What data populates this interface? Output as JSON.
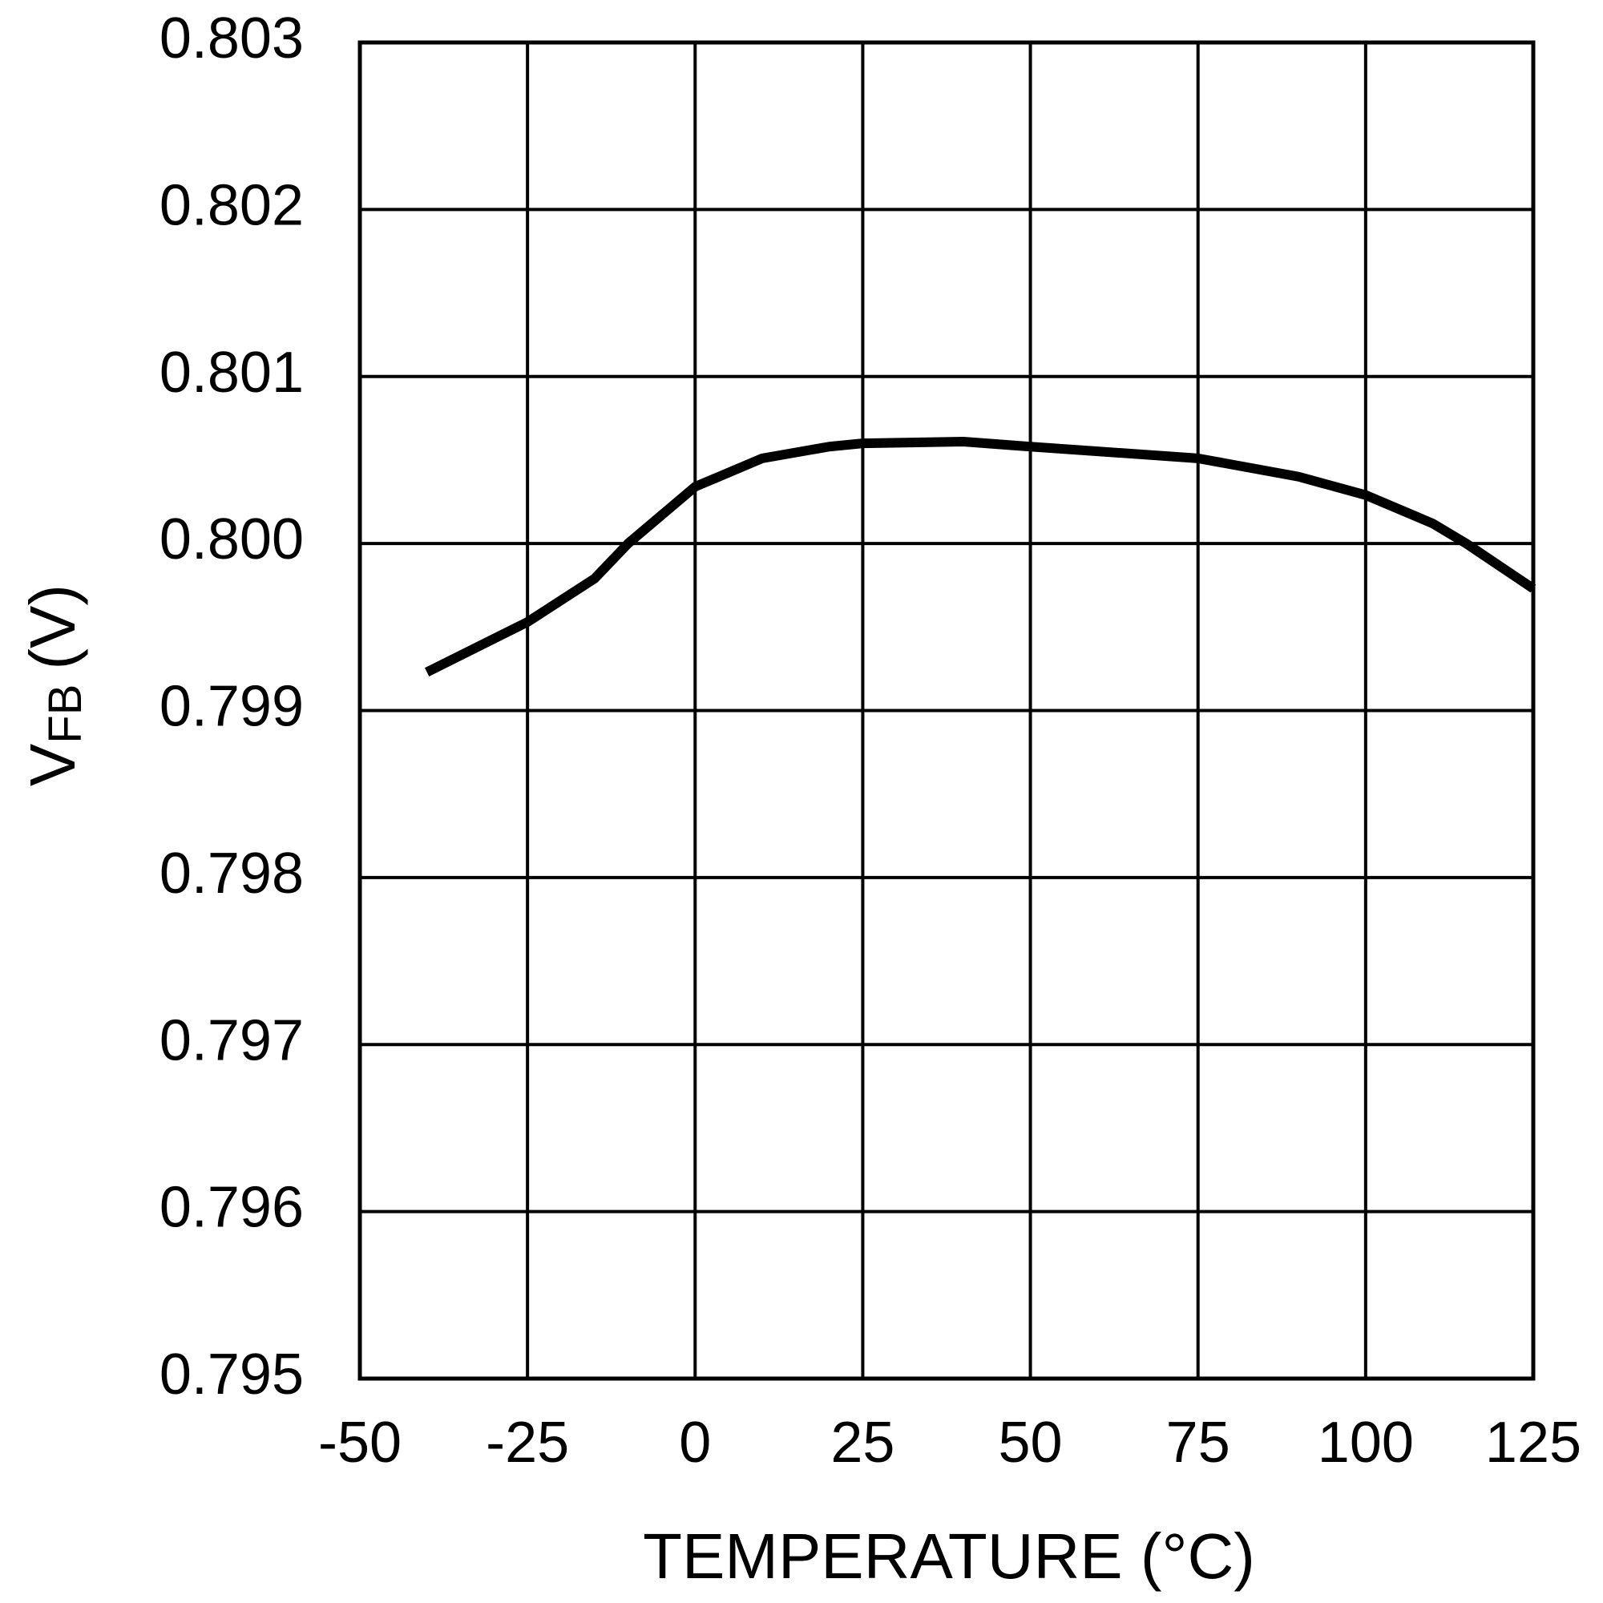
{
  "chart_data": {
    "type": "line",
    "xlabel": "TEMPERATURE (°C)",
    "ylabel": "V",
    "ylabel_subscript": "FB",
    "ylabel_unit": "(V)",
    "x": [
      -40,
      -25,
      -15,
      -10,
      0,
      10,
      20,
      25,
      40,
      50,
      75,
      90,
      100,
      110,
      115,
      125
    ],
    "series": [
      {
        "name": "VFB",
        "color": "#000000",
        "values": [
          0.79923,
          0.79953,
          0.79979,
          0.8,
          0.80034,
          0.80051,
          0.80058,
          0.8006,
          0.80061,
          0.80058,
          0.80051,
          0.8004,
          0.80029,
          0.80012,
          0.8,
          0.79973
        ]
      }
    ],
    "xlim": [
      -50,
      125
    ],
    "xticks": [
      -50,
      -25,
      0,
      25,
      50,
      75,
      100,
      125
    ],
    "ylim": [
      0.795,
      0.803
    ],
    "yticks": [
      0.795,
      0.796,
      0.797,
      0.798,
      0.799,
      {
        "value": 0.8,
        "label": "0.800"
      },
      0.801,
      0.802,
      0.803
    ],
    "grid": true
  }
}
